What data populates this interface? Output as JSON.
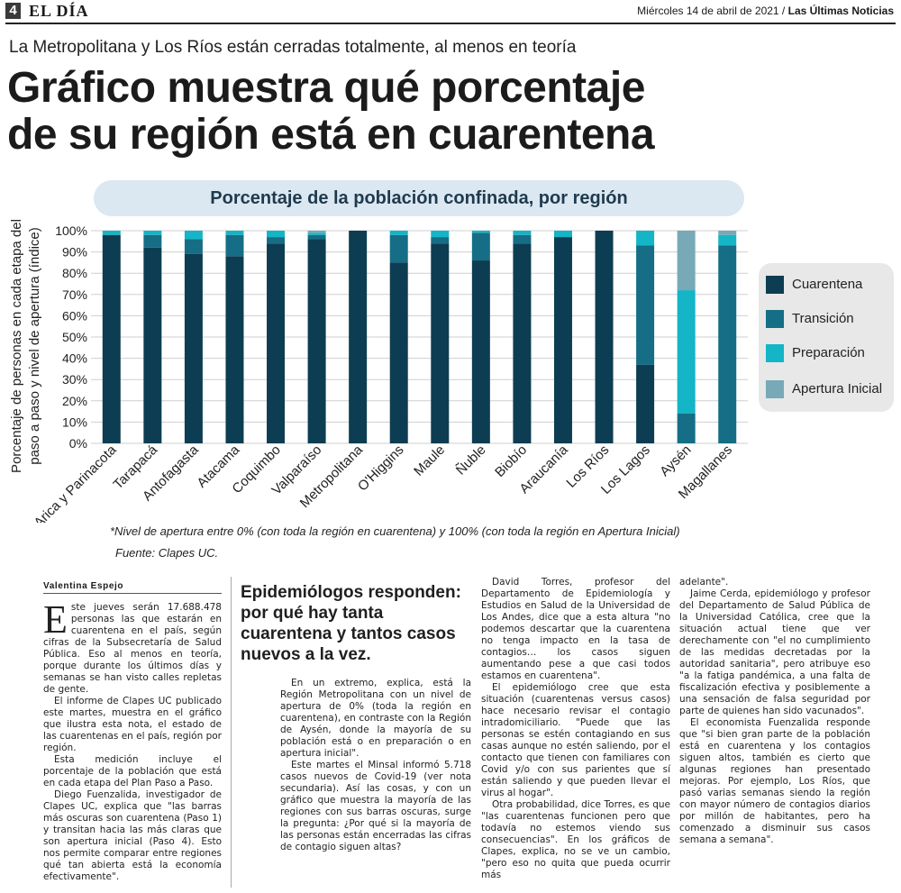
{
  "masthead": {
    "page_number": "4",
    "section": "EL DÍA",
    "date": "Miércoles 14 de abril de 2021 /",
    "paper": "Las Últimas Noticias"
  },
  "kicker": "La Metropolitana y Los Ríos están cerradas totalmente, al menos en teoría",
  "headline": {
    "line1": "Gráfico muestra qué porcentaje",
    "line2": "de su región está en cuarentena"
  },
  "chart_data": {
    "type": "bar",
    "stacked": true,
    "title": "Porcentaje de la población confinada, por región",
    "ylabel_line1": "Porcentaje de personas en cada etapa del",
    "ylabel_line2": "paso a paso y nivel de apertura (índice)",
    "ylim": [
      0,
      100
    ],
    "yticks": [
      "0%",
      "10%",
      "20%",
      "30%",
      "40%",
      "50%",
      "60%",
      "70%",
      "80%",
      "90%",
      "100%"
    ],
    "grid": true,
    "legend_position": "right",
    "categories": [
      "Arica y Parinacota",
      "Tarapacá",
      "Antofagasta",
      "Atacama",
      "Coquimbo",
      "Valparaíso",
      "Metropolitana",
      "O'Higgins",
      "Maule",
      "Ñuble",
      "Biobío",
      "Araucanía",
      "Los Ríos",
      "Los Lagos",
      "Aysén",
      "Magallanes"
    ],
    "series": [
      {
        "name": "Cuarentena",
        "color": "#0d3d52",
        "values": [
          98,
          92,
          89,
          88,
          94,
          96,
          100,
          85,
          94,
          86,
          94,
          97,
          100,
          37,
          0,
          0
        ]
      },
      {
        "name": "Transición",
        "color": "#156e85",
        "values": [
          0,
          6,
          7,
          10,
          3,
          2,
          0,
          13,
          3,
          13,
          4,
          0,
          0,
          56,
          14,
          93
        ]
      },
      {
        "name": "Preparación",
        "color": "#14b5c6",
        "values": [
          2,
          2,
          4,
          2,
          3,
          1,
          0,
          2,
          3,
          1,
          2,
          3,
          0,
          7,
          58,
          5
        ]
      },
      {
        "name": "Apertura Inicial",
        "color": "#78a9b6",
        "values": [
          0,
          0,
          0,
          0,
          0,
          1,
          0,
          0,
          0,
          0,
          0,
          0,
          0,
          0,
          28,
          2
        ]
      }
    ],
    "note": "*Nivel de apertura entre 0% (con toda la región en cuarentena) y 100% (con toda la región en Apertura Inicial)",
    "source": "Fuente: Clapes UC."
  },
  "article": {
    "byline": "Valentina Espejo",
    "subhead": "Epidemiólogos responden: por qué hay tanta cuarentena y tantos casos nuevos a la vez.",
    "col1": {
      "dropcap": "E",
      "p1": "ste jueves serán 17.688.478 personas las que estarán en cuarentena en el país, según cifras de la Subsecretaría de Salud Pública. Eso al menos en teoría, porque durante los últimos días y semanas se han visto calles repletas de gente.",
      "p2": "El informe de Clapes UC publicado este martes, muestra en el gráfico que ilustra esta nota, el estado de las cuarentenas en el país, región por región.",
      "p3": "Esta medición incluye el porcentaje de la población que está en cada etapa del Plan Paso a Paso.",
      "p4": "Diego Fuenzalida, investigador de Clapes UC, explica que \"las barras más oscuras son cuarentena (Paso 1) y transitan hacia las más claras que son apertura inicial (Paso 4). Esto nos permite comparar entre regiones qué tan abierta está la economía efectivamente\"."
    },
    "col2": {
      "p1": "En un extremo, explica, está la Región Metropolitana con un nivel de apertura de 0% (toda la región en cuarentena), en contraste con la Región de Aysén, donde la mayoría de su población está o en preparación o en apertura inicial\".",
      "p2": "Este martes el Minsal informó 5.718 casos nuevos de Covid-19 (ver nota secundaria). Así las cosas, y con un gráfico que muestra la mayoría de las regiones con sus barras oscuras, surge la pregunta: ¿Por qué si la mayoría de las personas están encerradas las cifras de contagio siguen altas?"
    },
    "col3": {
      "p1": "David Torres, profesor del Departamento de Epidemiología y Estudios en Salud de la Universidad de Los Andes, dice que a esta altura \"no podemos descartar que la cuarentena no tenga impacto en la tasa de contagios… los casos siguen aumentando pese a que casi todos estamos en cuarentena\".",
      "p2": "El epidemiólogo cree que esta situación (cuarentenas versus casos) hace necesario revisar el contagio intradomiciliario. \"Puede que las personas se estén contagiando en sus casas aunque no estén saliendo, por el contacto que tienen con familiares con Covid y/o con sus parientes que sí están saliendo y que pueden llevar el virus al hogar\".",
      "p3": "Otra probabilidad, dice Torres, es que \"las cuarentenas funcionen pero que todavía no estemos viendo sus consecuencias\". En los gráficos de Clapes, explica, no se ve un cambio, \"pero eso no quita que pueda ocurrir más"
    },
    "col4": {
      "p0": "adelante\".",
      "p1": "Jaime Cerda, epidemiólogo y profesor del Departamento de Salud Pública de la Universidad Católica, cree que la situación actual tiene que ver derechamente con \"el no cumplimiento de las medidas decretadas por la autoridad sanitaria\", pero atribuye eso \"a la fatiga pandémica, a una falta de fiscalización efectiva y posiblemente a una sensación de falsa seguridad por parte de quienes han sido vacunados\".",
      "p2": "El economista Fuenzalida responde que \"si bien gran parte de la población está en cuarentena y los contagios siguen altos, también es cierto que algunas regiones han presentado mejoras. Por ejemplo, Los Ríos, que pasó varias semanas siendo la región con mayor número de contagios diarios por millón de habitantes, pero ha comenzado a disminuir sus casos semana a semana\"."
    }
  }
}
